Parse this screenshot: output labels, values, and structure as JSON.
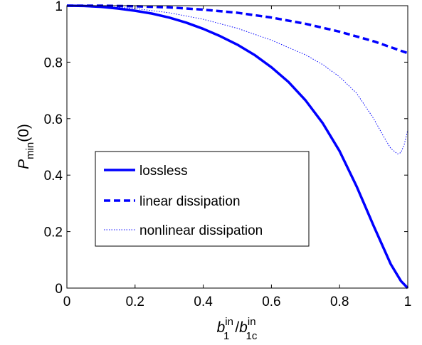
{
  "chart_data": {
    "type": "line",
    "xlabel": {
      "base": "b",
      "sub": "1",
      "sup": "in",
      "slash": "/",
      "base2": "b",
      "sub2": "1c",
      "sup2": "in"
    },
    "ylabel": {
      "base": "P",
      "sub": "min",
      "suffix": "(0)"
    },
    "xlim": [
      0,
      1
    ],
    "ylim": [
      0,
      1
    ],
    "x_ticks": [
      0,
      0.2,
      0.4,
      0.6,
      0.8,
      1
    ],
    "y_ticks": [
      0,
      0.2,
      0.4,
      0.6,
      0.8,
      1
    ],
    "x_tick_labels": [
      "0",
      "0.2",
      "0.4",
      "0.6",
      "0.8",
      "1"
    ],
    "y_tick_labels": [
      "0",
      "0.2",
      "0.4",
      "0.6",
      "0.8",
      "1"
    ],
    "grid": false,
    "legend_position": "lower-left",
    "series": [
      {
        "name": "lossless",
        "style": "solid",
        "color": "#0000ff",
        "x": [
          0,
          0.05,
          0.1,
          0.15,
          0.2,
          0.25,
          0.3,
          0.35,
          0.4,
          0.45,
          0.5,
          0.55,
          0.6,
          0.65,
          0.7,
          0.75,
          0.8,
          0.85,
          0.9,
          0.95,
          0.98,
          1
        ],
        "y": [
          1,
          0.999,
          0.996,
          0.99,
          0.982,
          0.972,
          0.958,
          0.94,
          0.918,
          0.892,
          0.862,
          0.826,
          0.782,
          0.73,
          0.665,
          0.585,
          0.485,
          0.36,
          0.22,
          0.085,
          0.025,
          0
        ]
      },
      {
        "name": "linear dissipation",
        "style": "dashed",
        "color": "#0000ff",
        "x": [
          0,
          0.1,
          0.2,
          0.3,
          0.4,
          0.5,
          0.6,
          0.7,
          0.8,
          0.9,
          0.95,
          1
        ],
        "y": [
          1,
          1,
          0.998,
          0.994,
          0.986,
          0.975,
          0.958,
          0.936,
          0.908,
          0.874,
          0.853,
          0.832
        ]
      },
      {
        "name": "nonlinear dissipation",
        "style": "dotted",
        "color": "#0000ff",
        "x": [
          0,
          0.1,
          0.2,
          0.3,
          0.4,
          0.5,
          0.6,
          0.7,
          0.75,
          0.8,
          0.85,
          0.9,
          0.93,
          0.95,
          0.97,
          0.98,
          0.99,
          1
        ],
        "y": [
          1,
          0.998,
          0.99,
          0.975,
          0.952,
          0.92,
          0.878,
          0.826,
          0.792,
          0.748,
          0.69,
          0.6,
          0.535,
          0.495,
          0.475,
          0.48,
          0.51,
          0.56
        ]
      }
    ]
  }
}
